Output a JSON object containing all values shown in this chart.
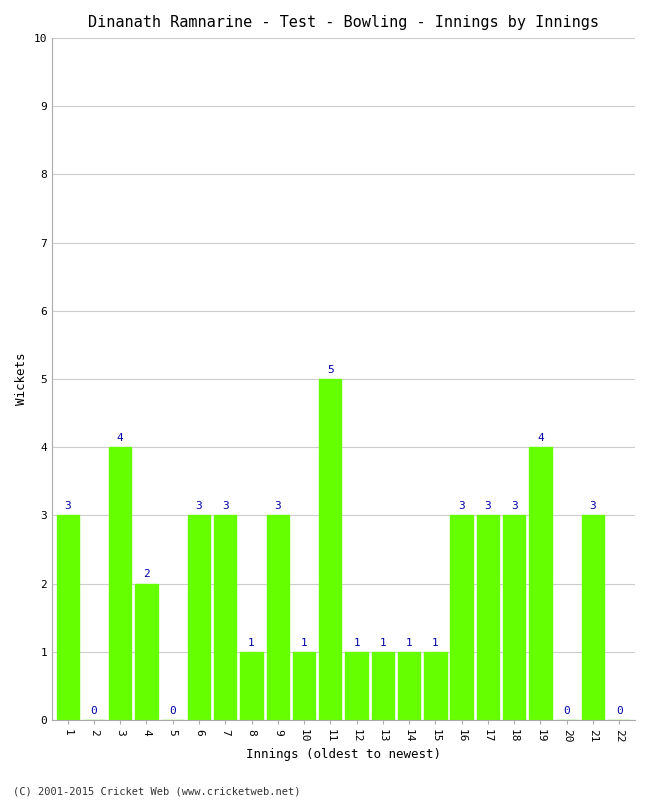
{
  "title": "Dinanath Ramnarine - Test - Bowling - Innings by Innings",
  "xlabel": "Innings (oldest to newest)",
  "ylabel": "Wickets",
  "categories": [
    1,
    2,
    3,
    4,
    5,
    6,
    7,
    8,
    9,
    10,
    11,
    12,
    13,
    14,
    15,
    16,
    17,
    18,
    19,
    20,
    21,
    22
  ],
  "values": [
    3,
    0,
    4,
    2,
    0,
    3,
    3,
    1,
    3,
    1,
    5,
    1,
    1,
    1,
    1,
    3,
    3,
    3,
    4,
    0,
    3,
    0
  ],
  "bar_color": "#66FF00",
  "label_color": "#0000AA",
  "ylim": [
    0,
    10
  ],
  "yticks": [
    0,
    1,
    2,
    3,
    4,
    5,
    6,
    7,
    8,
    9,
    10
  ],
  "background_color": "#ffffff",
  "grid_color": "#cccccc",
  "title_fontsize": 11,
  "axis_label_fontsize": 9,
  "tick_fontsize": 8,
  "bar_label_fontsize": 8,
  "footer": "(C) 2001-2015 Cricket Web (www.cricketweb.net)"
}
